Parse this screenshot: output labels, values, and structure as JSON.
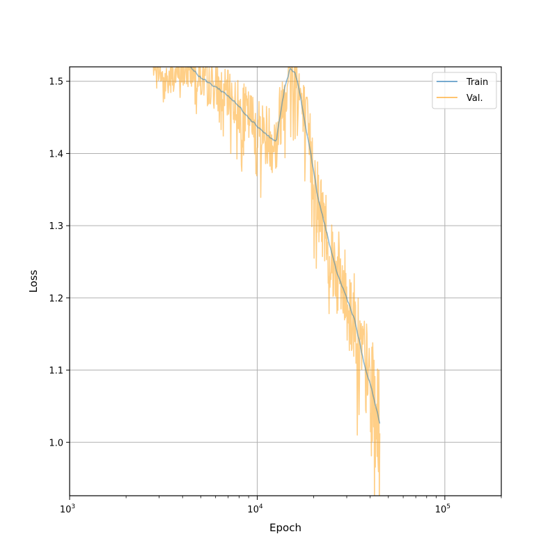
{
  "chart_data": {
    "type": "line",
    "xscale": "log",
    "xlabel": "Epoch",
    "ylabel": "Loss",
    "xlim": [
      1000,
      200000
    ],
    "ylim": [
      0.926,
      1.52
    ],
    "grid": true,
    "legend_position": "top-right",
    "x_major_ticks": [
      {
        "value": 1000,
        "base": "10",
        "exp": "3"
      },
      {
        "value": 10000,
        "base": "10",
        "exp": "4"
      },
      {
        "value": 100000,
        "base": "10",
        "exp": "5"
      }
    ],
    "y_ticks": [
      {
        "value": 1.0,
        "label": "1.0"
      },
      {
        "value": 1.1,
        "label": "1.1"
      },
      {
        "value": 1.2,
        "label": "1.2"
      },
      {
        "value": 1.3,
        "label": "1.3"
      },
      {
        "value": 1.4,
        "label": "1.4"
      },
      {
        "value": 1.5,
        "label": "1.5"
      }
    ],
    "series": [
      {
        "name": "Train",
        "color": "#1f77b4",
        "opacity": 0.5,
        "points": [
          [
            2700,
            1.54
          ],
          [
            4400,
            1.52
          ],
          [
            5000,
            1.505
          ],
          [
            5500,
            1.498
          ],
          [
            6200,
            1.49
          ],
          [
            7000,
            1.48
          ],
          [
            8000,
            1.465
          ],
          [
            9000,
            1.45
          ],
          [
            10000,
            1.438
          ],
          [
            11000,
            1.428
          ],
          [
            12000,
            1.42
          ],
          [
            12600,
            1.416
          ],
          [
            13200,
            1.45
          ],
          [
            14000,
            1.49
          ],
          [
            15000,
            1.518
          ],
          [
            16000,
            1.51
          ],
          [
            17000,
            1.48
          ],
          [
            18000,
            1.44
          ],
          [
            19000,
            1.41
          ],
          [
            20000,
            1.375
          ],
          [
            21000,
            1.34
          ],
          [
            23000,
            1.3
          ],
          [
            25000,
            1.26
          ],
          [
            27000,
            1.23
          ],
          [
            30000,
            1.2
          ],
          [
            33000,
            1.17
          ],
          [
            35000,
            1.14
          ],
          [
            37000,
            1.11
          ],
          [
            40000,
            1.08
          ],
          [
            42000,
            1.06
          ],
          [
            45000,
            1.026
          ]
        ]
      },
      {
        "name": "Val.",
        "color": "#ff9f10",
        "opacity": 0.5,
        "noise_seed": 7,
        "points": [
          [
            2700,
            1.54
          ],
          [
            3200,
            1.5
          ],
          [
            4400,
            1.52
          ],
          [
            5000,
            1.505
          ],
          [
            5500,
            1.498
          ],
          [
            6200,
            1.49
          ],
          [
            7000,
            1.48
          ],
          [
            8000,
            1.465
          ],
          [
            9000,
            1.45
          ],
          [
            10000,
            1.438
          ],
          [
            11000,
            1.428
          ],
          [
            12000,
            1.42
          ],
          [
            12600,
            1.416
          ],
          [
            13200,
            1.45
          ],
          [
            14000,
            1.49
          ],
          [
            15000,
            1.518
          ],
          [
            16000,
            1.51
          ],
          [
            17000,
            1.48
          ],
          [
            18000,
            1.44
          ],
          [
            19000,
            1.41
          ],
          [
            20000,
            1.375
          ],
          [
            21000,
            1.34
          ],
          [
            23000,
            1.3
          ],
          [
            25000,
            1.26
          ],
          [
            27000,
            1.23
          ],
          [
            30000,
            1.2
          ],
          [
            33000,
            1.17
          ],
          [
            35000,
            1.14
          ],
          [
            37000,
            1.11
          ],
          [
            40000,
            1.08
          ],
          [
            42000,
            1.06
          ],
          [
            45000,
            1.026
          ]
        ]
      }
    ]
  }
}
